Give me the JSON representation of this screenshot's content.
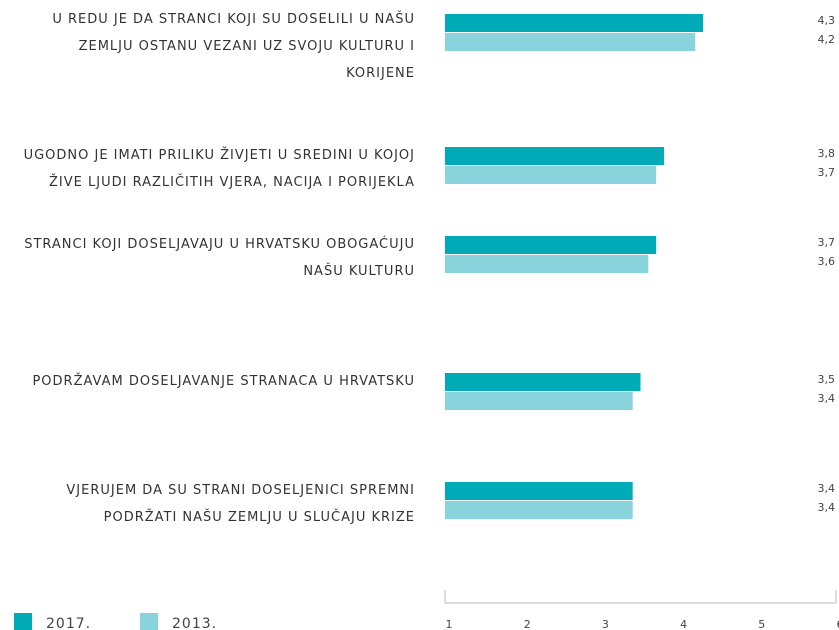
{
  "chart_data": {
    "type": "bar",
    "orientation": "horizontal",
    "categories": [
      "U REDU JE DA STRANCI KOJI SU DOSELILI U NAŠU ZEMLJU OSTANU VEZANI UZ SVOJU KULTURU I KORIJENE",
      "UGODNO JE IMATI PRILIKU ŽIVJETI U SREDINI U KOJOJ ŽIVE LJUDI RAZLIČITIH VJERA, NACIJA I PORIJEKLA",
      "STRANCI KOJI DOSELJAVAJU U HRVATSKU OBOGAĆUJU NAŠU KULTURU",
      "PODRŽAVAM DOSELJAVANJE STRANACA U HRVATSKU",
      "VJERUJEM DA SU STRANI DOSELJENICI SPREMNI PODRŽATI NAŠU ZEMLJU U SLUČAJU KRIZE"
    ],
    "series": [
      {
        "name": "2017.",
        "color": "#00abb8",
        "values": [
          4.3,
          3.8,
          3.7,
          3.5,
          3.4
        ],
        "value_labels": [
          "4,3",
          "3,8",
          "3,7",
          "3,5",
          "3,4"
        ]
      },
      {
        "name": "2013.",
        "color": "#88d3dc",
        "values": [
          4.2,
          3.7,
          3.6,
          3.4,
          3.4
        ],
        "value_labels": [
          "4,2",
          "3,7",
          "3,6",
          "3,4",
          "3,4"
        ]
      }
    ],
    "xlim": [
      1,
      6
    ],
    "xticks": [
      1,
      2,
      3,
      4,
      5,
      6
    ],
    "legend": "bottom-left"
  }
}
